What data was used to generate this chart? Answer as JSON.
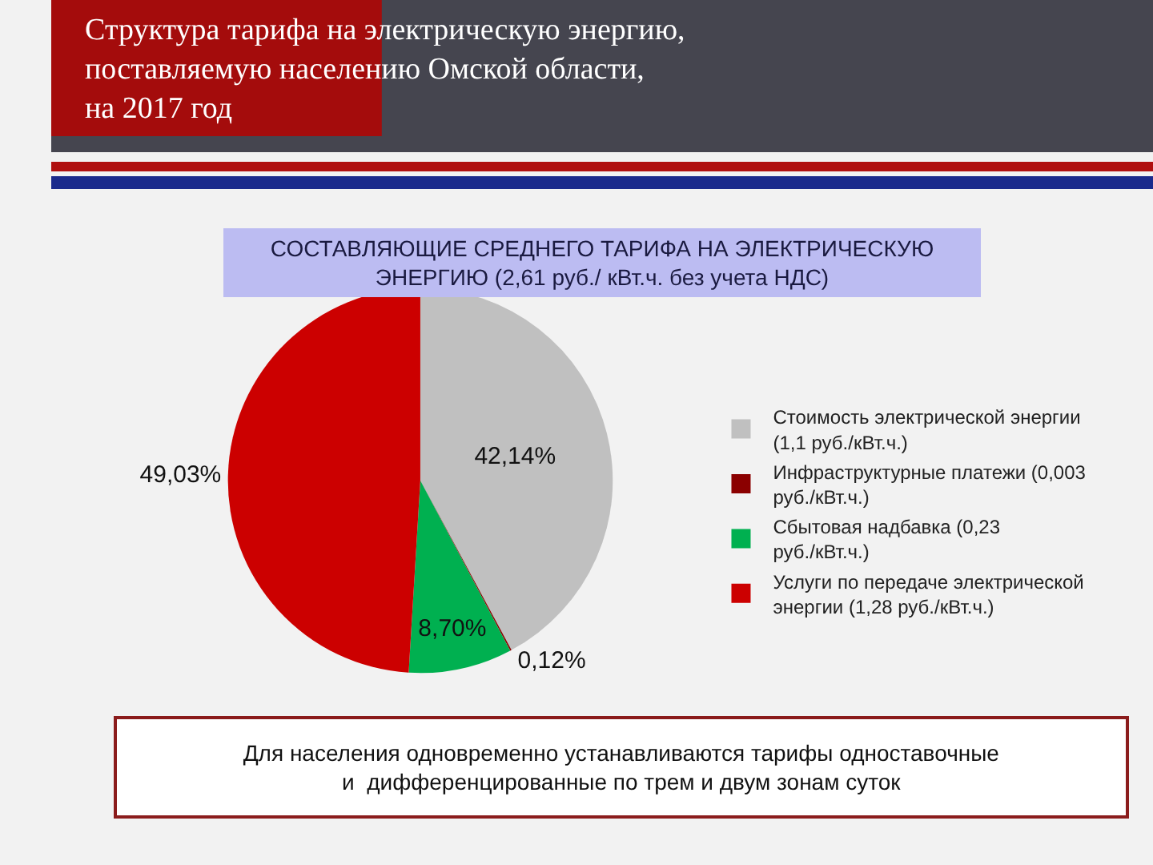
{
  "chart_data": {
    "type": "pie",
    "title": "Структура тарифа на электрическую энергию,\nпоставляемую населению Омской области,\nна 2017 год",
    "subtitle": "СОСТАВЛЯЮЩИЕ СРЕДНЕГО ТАРИФА НА ЭЛЕКТРИЧЕСКУЮ\nЭНЕРГИЮ (2,61 руб./ кВт.ч. без учета НДС)",
    "categories": [
      "Стоимость электрической энергии (1,1 руб./кВт.ч.)",
      "Инфраструктурные платежи (0,003 руб./кВт.ч.)",
      "Сбытовая надбавка (0,23 руб./кВт.ч.)",
      "Услуги по передаче электрической энергии (1,28 руб./кВт.ч.)"
    ],
    "values": [
      42.14,
      0.12,
      8.7,
      49.03
    ],
    "colors": [
      "#c0c0c0",
      "#8b0000",
      "#00b050",
      "#cc0000"
    ],
    "value_labels": [
      "42,14%",
      "0,12%",
      "8,70%",
      "49,03%"
    ],
    "legend": "right",
    "annotations": [
      "Для населения одновременно устанавливаются тарифы одноставочные\nи  дифференцированные по трем и двум зонам суток"
    ]
  }
}
